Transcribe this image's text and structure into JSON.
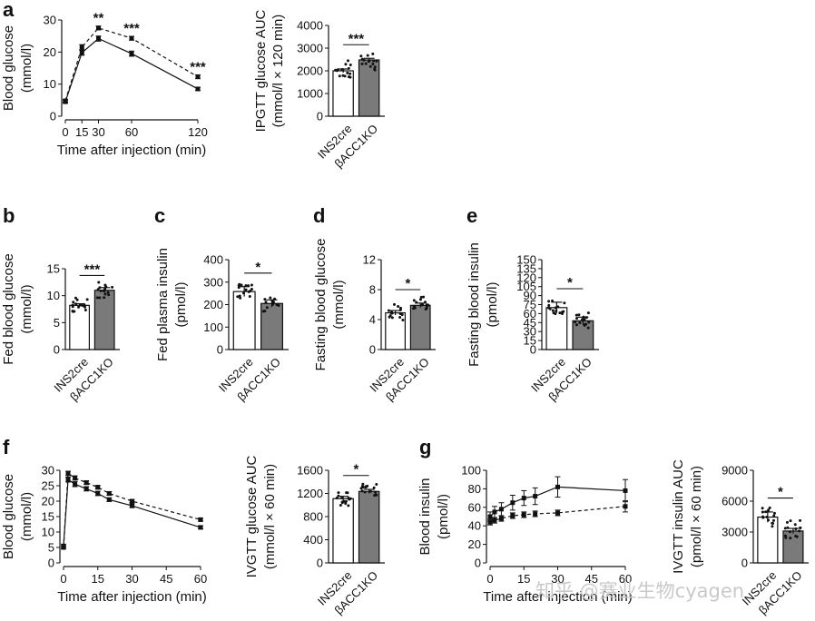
{
  "watermark": "知乎 @赛业生物cyagen",
  "chart_data": [
    {
      "id": "a-line",
      "panel": "a",
      "type": "line",
      "xlabel": "Time after injection (min)",
      "ylabel": [
        "Blood glucose",
        "(mmol/l)"
      ],
      "xlim": [
        0,
        120
      ],
      "ylim": [
        0,
        30
      ],
      "xticks": [
        0,
        15,
        30,
        60,
        120
      ],
      "yticks": [
        0,
        10,
        20,
        30
      ],
      "series": [
        {
          "name": "INS2cre",
          "style": "solid",
          "x": [
            0,
            15,
            30,
            60,
            120
          ],
          "y": [
            4.5,
            19.8,
            24.2,
            19.5,
            8.5
          ],
          "err": [
            0.4,
            0.8,
            0.8,
            0.8,
            0.5
          ]
        },
        {
          "name": "βACC1KO",
          "style": "dashed",
          "x": [
            0,
            15,
            30,
            60,
            120
          ],
          "y": [
            4.8,
            21.5,
            27.5,
            24.3,
            12.3
          ],
          "err": [
            0.4,
            0.8,
            0.6,
            0.6,
            0.6
          ]
        }
      ],
      "annotations": [
        {
          "x": 30,
          "text": "**"
        },
        {
          "x": 60,
          "text": "***"
        },
        {
          "x": 120,
          "text": "***"
        }
      ]
    },
    {
      "id": "a-bar",
      "panel": "",
      "type": "bar",
      "ylabel": [
        "IPGTT glucose AUC",
        "(mmol/l × 120 min)"
      ],
      "categories": [
        "INS2cre",
        "βACC1KO"
      ],
      "values": [
        2000,
        2480
      ],
      "err": [
        80,
        70
      ],
      "ylim": [
        0,
        4000
      ],
      "yticks": [
        0,
        1000,
        2000,
        3000,
        4000
      ],
      "sig": "***"
    },
    {
      "id": "b",
      "panel": "b",
      "type": "bar",
      "ylabel": [
        "Fed blood glucose",
        "(mmol/l)"
      ],
      "categories": [
        "INS2cre",
        "βACC1KO"
      ],
      "values": [
        8.2,
        11.0
      ],
      "err": [
        0.3,
        0.5
      ],
      "ylim": [
        0,
        15
      ],
      "yticks": [
        0,
        5,
        10,
        15
      ],
      "sig": "***"
    },
    {
      "id": "c",
      "panel": "c",
      "type": "bar",
      "ylabel": [
        "Fed plasma insulin",
        "(pmol/l)"
      ],
      "categories": [
        "INS2cre",
        "βACC1KO"
      ],
      "values": [
        258,
        205
      ],
      "err": [
        22,
        16
      ],
      "ylim": [
        0,
        400
      ],
      "yticks": [
        0,
        100,
        200,
        300,
        400
      ],
      "sig": "*"
    },
    {
      "id": "d",
      "panel": "d",
      "type": "bar",
      "ylabel": [
        "Fasting blood glucose",
        "(mmol/l)"
      ],
      "categories": [
        "INS2cre",
        "βACC1KO"
      ],
      "values": [
        4.9,
        5.9
      ],
      "err": [
        0.3,
        0.3
      ],
      "ylim": [
        0,
        12
      ],
      "yticks": [
        0,
        4,
        8,
        12
      ],
      "sig": "*"
    },
    {
      "id": "e",
      "panel": "e",
      "type": "bar",
      "ylabel": [
        "Fasting blood insulin",
        "(pmol/l)"
      ],
      "categories": [
        "INS2cre",
        "βACC1KO"
      ],
      "values": [
        70,
        48
      ],
      "err": [
        9,
        6
      ],
      "ylim": [
        0,
        150
      ],
      "yticks": [
        0,
        15,
        30,
        45,
        60,
        75,
        90,
        105,
        120,
        135,
        150
      ],
      "sig": "*"
    },
    {
      "id": "f-line",
      "panel": "f",
      "type": "line",
      "xlabel": "Time after injection (min)",
      "ylabel": [
        "Blood glucose",
        "(mmol/l)"
      ],
      "xlim": [
        0,
        60
      ],
      "ylim": [
        0,
        30
      ],
      "xticks": [
        0,
        15,
        30,
        45,
        60
      ],
      "yticks": [
        0,
        5,
        10,
        15,
        20,
        25,
        30
      ],
      "series": [
        {
          "name": "INS2cre",
          "style": "solid",
          "x": [
            0,
            2,
            5,
            10,
            15,
            20,
            30,
            60
          ],
          "y": [
            5.5,
            27.0,
            25.5,
            24.0,
            22.5,
            20.5,
            18.5,
            11.5
          ],
          "err": [
            0.5,
            0.8,
            0.8,
            0.7,
            0.7,
            0.6,
            0.6,
            0.5
          ]
        },
        {
          "name": "βACC1KO",
          "style": "dashed",
          "x": [
            0,
            2,
            5,
            10,
            15,
            20,
            30,
            60
          ],
          "y": [
            5.0,
            29.0,
            27.5,
            26.0,
            24.5,
            22.5,
            20.0,
            14.0
          ],
          "err": [
            0.5,
            0.7,
            0.7,
            0.6,
            0.6,
            0.6,
            0.5,
            0.5
          ]
        }
      ]
    },
    {
      "id": "f-bar",
      "panel": "",
      "type": "bar",
      "ylabel": [
        "IVGTT glucose AUC",
        "(mmol/l × 60 min)"
      ],
      "categories": [
        "INS2cre",
        "βACC1KO"
      ],
      "values": [
        1110,
        1235
      ],
      "err": [
        40,
        35
      ],
      "ylim": [
        0,
        1600
      ],
      "yticks": [
        0,
        400,
        800,
        1200,
        1600
      ],
      "sig": "*"
    },
    {
      "id": "g-line",
      "panel": "g",
      "type": "line",
      "xlabel": "Time after injection (min)",
      "ylabel": [
        "Blood insulin",
        "(pmol/l)"
      ],
      "xlim": [
        0,
        60
      ],
      "ylim": [
        0,
        100
      ],
      "xticks": [
        0,
        15,
        30,
        45,
        60
      ],
      "yticks": [
        0,
        20,
        40,
        60,
        80,
        100
      ],
      "series": [
        {
          "name": "INS2cre",
          "style": "solid",
          "x": [
            0,
            2,
            5,
            10,
            15,
            20,
            30,
            60
          ],
          "y": [
            50,
            55,
            58,
            65,
            70,
            72,
            82,
            78
          ],
          "err": [
            5,
            6,
            7,
            8,
            8,
            9,
            11,
            12
          ]
        },
        {
          "name": "βACC1KO",
          "style": "dashed",
          "x": [
            0,
            2,
            5,
            10,
            15,
            20,
            30,
            60
          ],
          "y": [
            44,
            46,
            48,
            51,
            52,
            53,
            54,
            61
          ],
          "err": [
            3,
            3,
            3,
            3,
            3,
            3,
            3,
            6
          ]
        }
      ]
    },
    {
      "id": "g-bar",
      "panel": "",
      "type": "bar",
      "ylabel": [
        "IVGTT insulin AUC",
        "(pmol/l × 60 min)"
      ],
      "categories": [
        "INS2cre",
        "βACC1KO"
      ],
      "values": [
        4450,
        3100
      ],
      "err": [
        500,
        250
      ],
      "ylim": [
        0,
        9000
      ],
      "yticks": [
        0,
        3000,
        6000,
        9000
      ],
      "sig": "*"
    }
  ]
}
